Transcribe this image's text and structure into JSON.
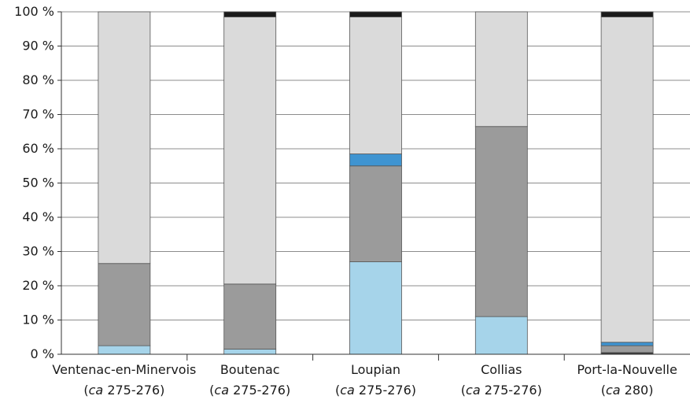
{
  "chart_data": {
    "type": "bar",
    "stacked": true,
    "normalized": true,
    "title": "",
    "xlabel": "",
    "ylabel": "",
    "ylim": [
      0,
      100
    ],
    "y_ticks": [
      "0 %",
      "10 %",
      "20 %",
      "30 %",
      "40 %",
      "50 %",
      "60 %",
      "70 %",
      "80 %",
      "90 %",
      "100 %"
    ],
    "grid": "horizontal",
    "legend": "none",
    "categories": [
      {
        "name": "Ventenac-en-Minervois",
        "date_prefix": "ca",
        "date_value": " 275-276"
      },
      {
        "name": "Boutenac",
        "date_prefix": "ca",
        "date_value": " 275-276"
      },
      {
        "name": "Loupian",
        "date_prefix": "ca",
        "date_value": " 275-276"
      },
      {
        "name": "Collias",
        "date_prefix": "ca",
        "date_value": " 275-276"
      },
      {
        "name": "Port-la-Nouvelle",
        "date_prefix": "ca",
        "date_value": " 280"
      }
    ],
    "series": [
      {
        "color": "#3a3a3a",
        "values": [
          0,
          0,
          0,
          0,
          0.5
        ]
      },
      {
        "color": "#a6d4ea",
        "values": [
          2.5,
          1.5,
          27,
          11,
          0
        ]
      },
      {
        "color": "#9b9b9b",
        "values": [
          24,
          19,
          28,
          55.5,
          2
        ]
      },
      {
        "color": "#3f94d1",
        "values": [
          0,
          0,
          3.5,
          0,
          1
        ]
      },
      {
        "color": "#dadada",
        "values": [
          73.5,
          78,
          40,
          33.5,
          95
        ]
      },
      {
        "color": "#1a1a1a",
        "values": [
          0,
          1.5,
          1.5,
          0,
          1.5
        ]
      }
    ]
  }
}
